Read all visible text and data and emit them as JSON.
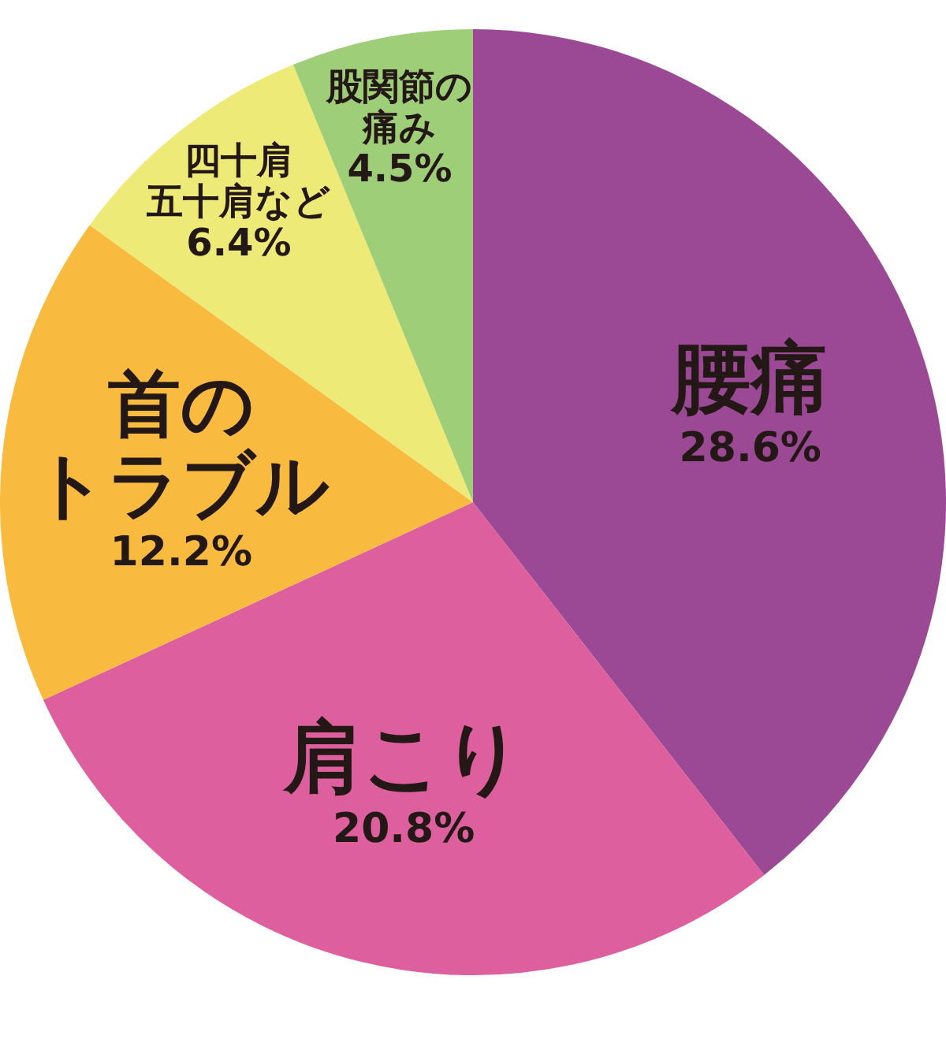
{
  "chart_data": {
    "type": "pie",
    "categories": [
      "腰痛",
      "肩こり",
      "首のトラブル",
      "四十肩五十肩など",
      "股関節の痛み"
    ],
    "values": [
      28.6,
      20.8,
      12.2,
      6.4,
      4.5
    ],
    "colors": [
      "#9b4995",
      "#dd5f9d",
      "#f8bb3f",
      "#eeea78",
      "#9fce78"
    ],
    "value_labels": [
      "28.6%",
      "20.8%",
      "12.2%",
      "6.4%",
      "4.5%"
    ],
    "legend": false
  }
}
